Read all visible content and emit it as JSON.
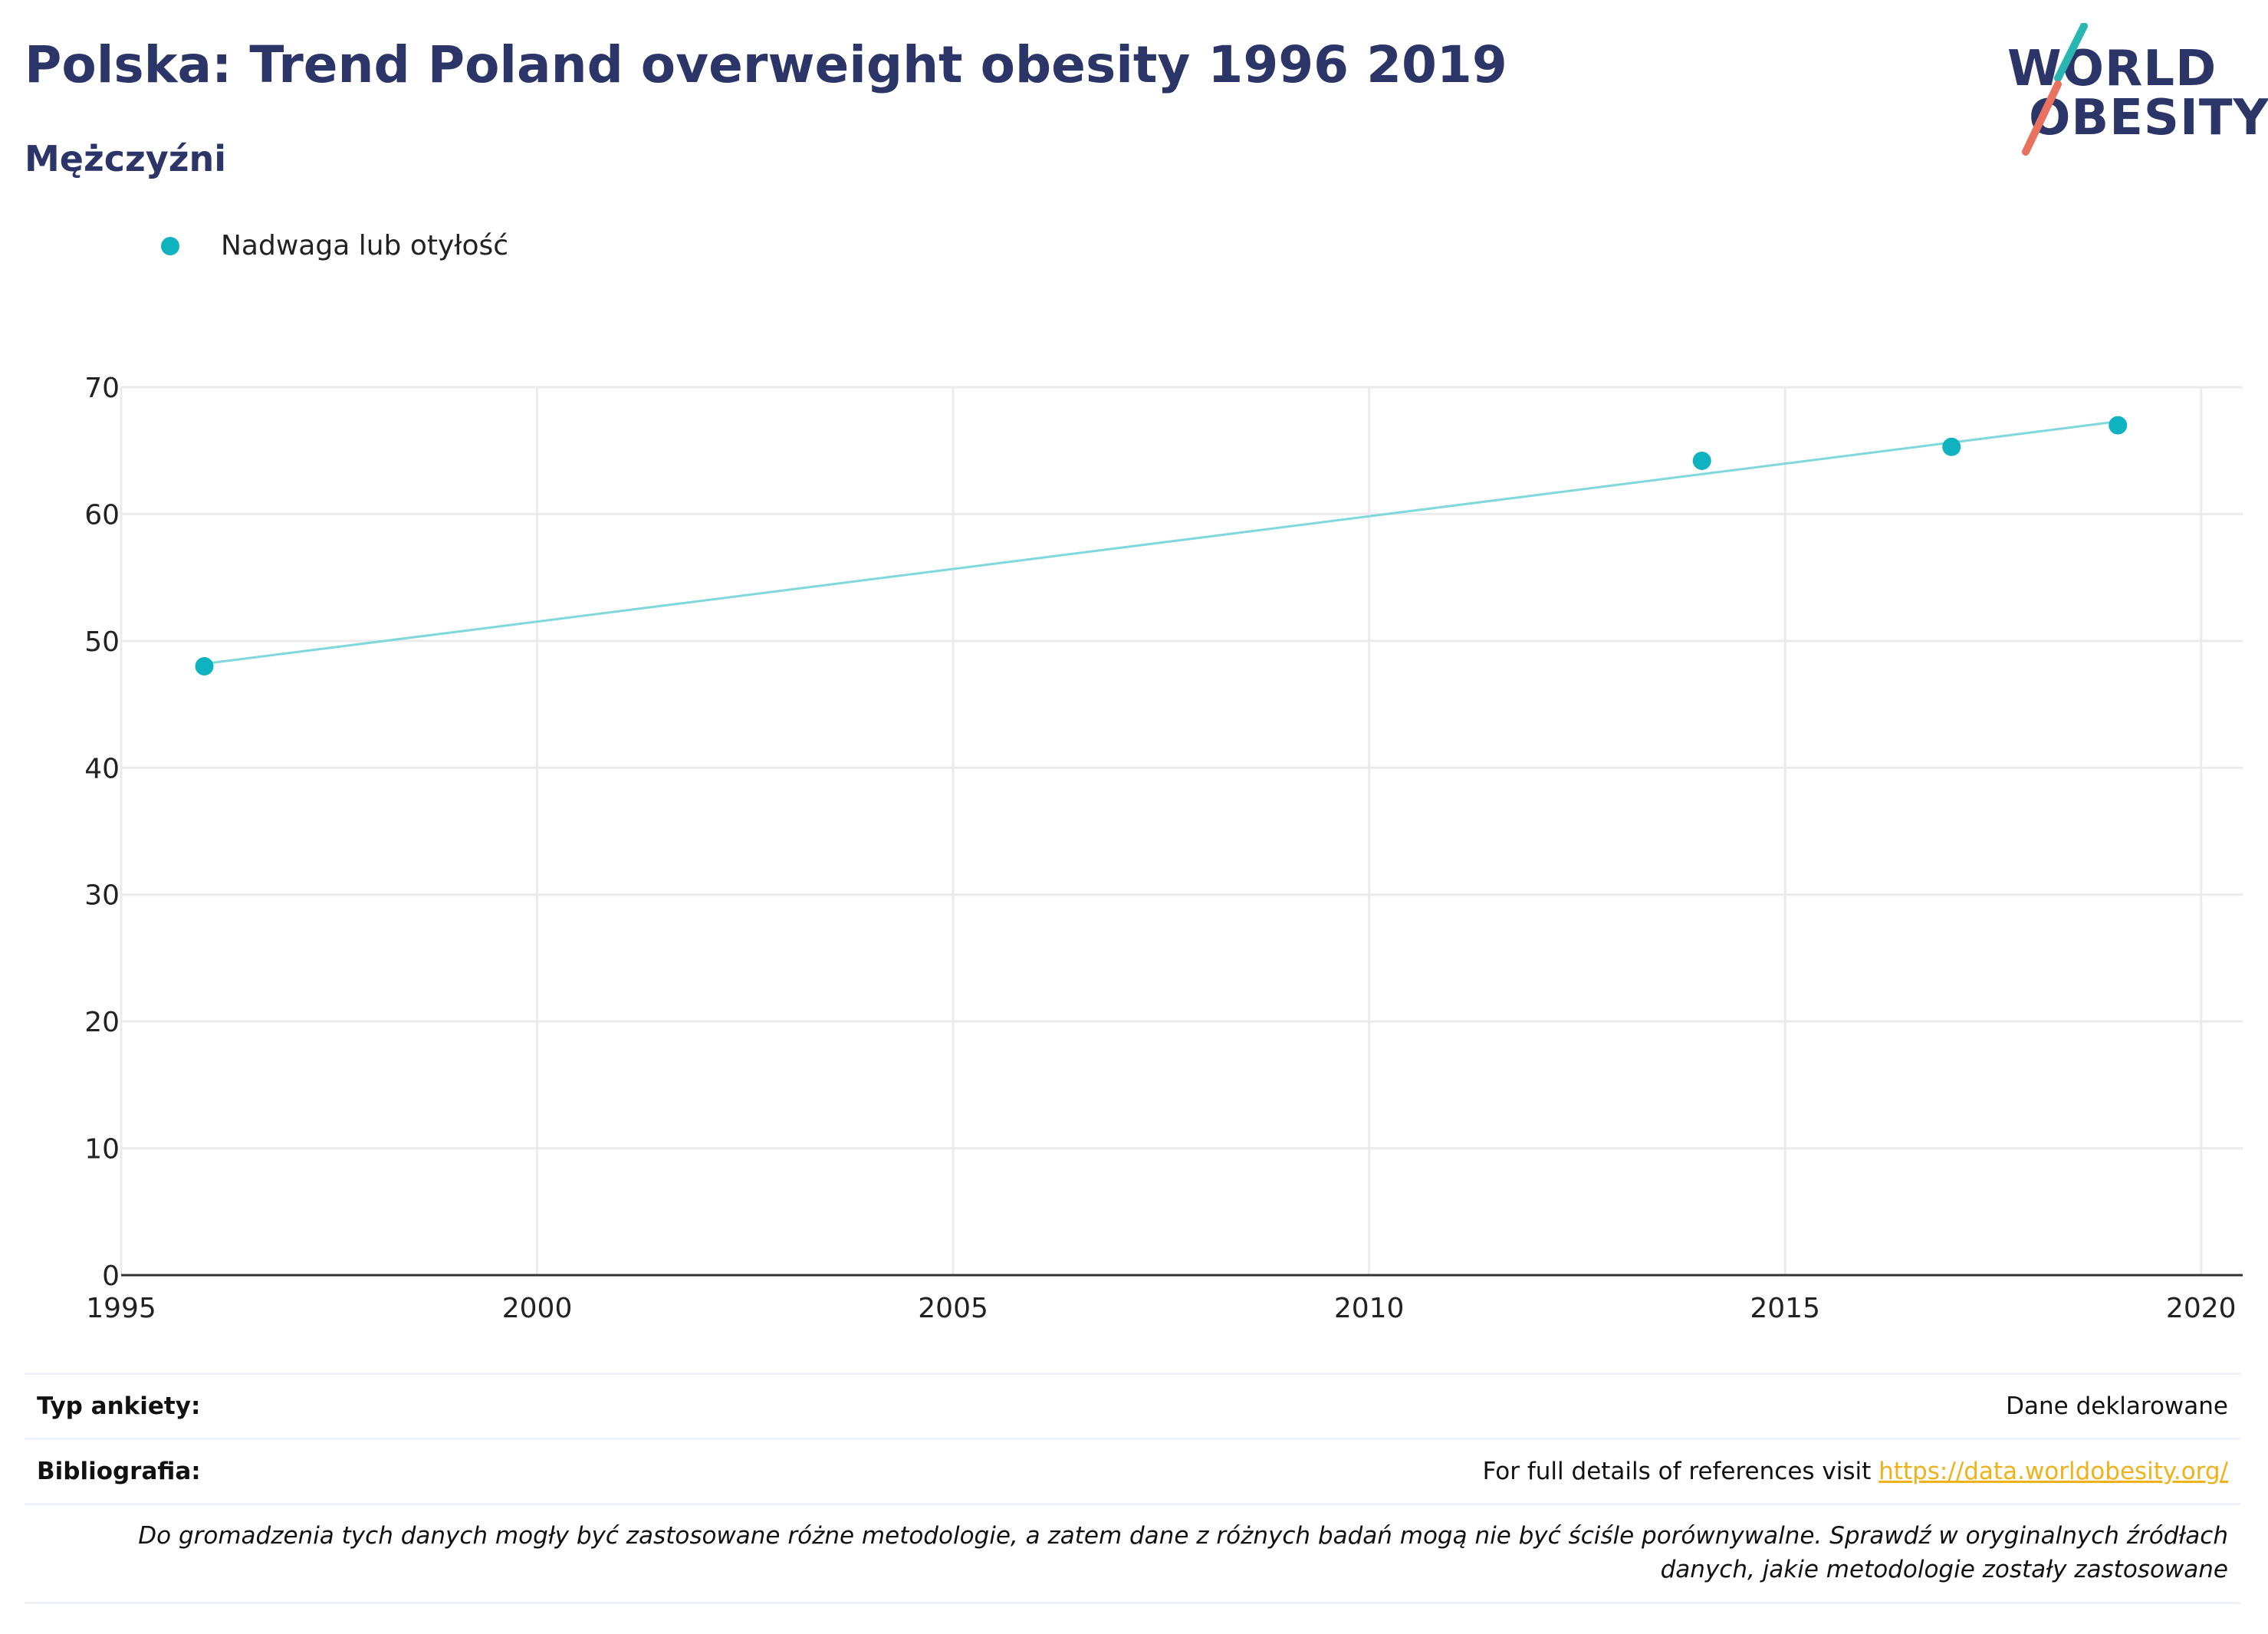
{
  "header": {
    "title": "Polska: Trend Poland overweight obesity 1996 2019",
    "subtitle": "Mężczyźni"
  },
  "logo": {
    "line1": "WORLD",
    "line2": "OBESITY"
  },
  "colors": {
    "title": "#2b3568",
    "series": "#0fb3bf",
    "trend": "#7fd8dc",
    "grid": "#ebebeb",
    "link": "#f0b21b",
    "logo_teal": "#27b6b1",
    "logo_coral": "#e8715f"
  },
  "chart_data": {
    "type": "scatter",
    "x": [
      1996,
      2014,
      2017,
      2019
    ],
    "series": [
      {
        "name": "Nadwaga lub otyłość",
        "values": [
          48.0,
          64.2,
          65.3,
          67.0
        ]
      }
    ],
    "trendline": {
      "x": [
        1996,
        2019
      ],
      "y": [
        48.2,
        67.3
      ]
    },
    "xlim": [
      1995,
      2020.5
    ],
    "ylim": [
      0,
      70
    ],
    "xticks": [
      1995,
      2000,
      2005,
      2010,
      2015,
      2020
    ],
    "yticks": [
      0,
      10,
      20,
      30,
      40,
      50,
      60,
      70
    ],
    "grid": true,
    "legend_position": "top-left"
  },
  "info": {
    "survey_label": "Typ ankiety:",
    "survey_value": "Dane deklarowane",
    "biblio_label": "Bibliografia:",
    "biblio_text": "For full details of references visit ",
    "biblio_link": "https://data.worldobesity.org/",
    "note": "Do gromadzenia tych danych mogły być zastosowane różne metodologie, a zatem dane z różnych badań mogą nie być ściśle porównywalne. Sprawdź w oryginalnych źródłach danych, jakie metodologie zostały zastosowane"
  }
}
